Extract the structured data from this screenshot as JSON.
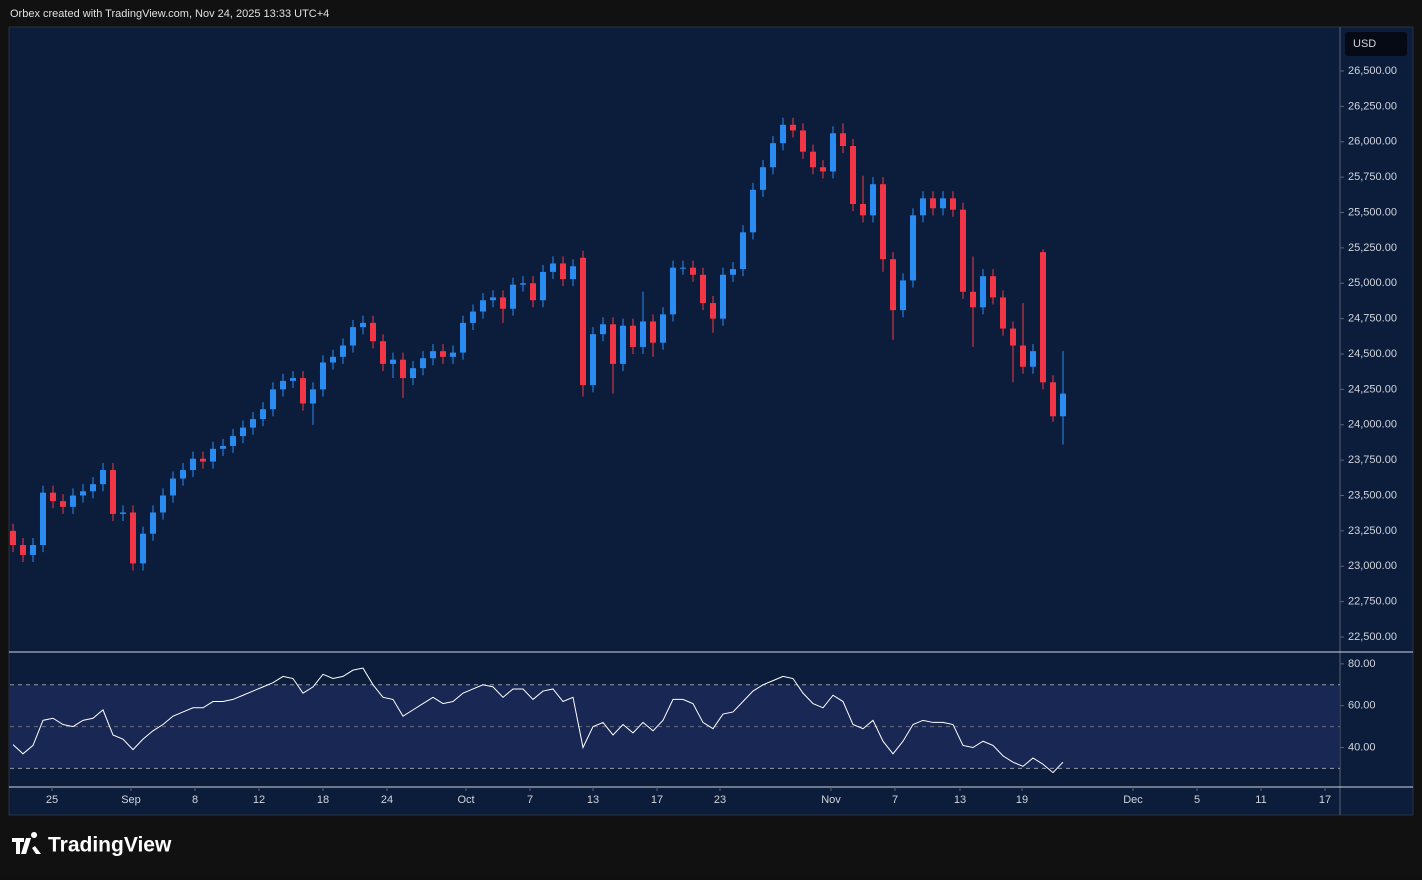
{
  "header": {
    "caption": "Orbex created with TradingView.com, Nov 24, 2025 13:33 UTC+4"
  },
  "logo": "TradingView",
  "chart_data": [
    {
      "type": "candlestick",
      "currency": "USD",
      "up_color": "#2a8cf0",
      "down_color": "#f23645",
      "open": [
        23250,
        23150,
        23080,
        23150,
        23520,
        23460,
        23420,
        23500,
        23530,
        23580,
        23680,
        23370,
        23380,
        23020,
        23230,
        23380,
        23500,
        23620,
        23680,
        23760,
        23740,
        23830,
        23850,
        23920,
        23980,
        24040,
        24110,
        24250,
        24310,
        24330,
        24150,
        24250,
        24440,
        24480,
        24560,
        24690,
        24720,
        24590,
        24430,
        24460,
        24330,
        24400,
        24470,
        24520,
        24480,
        24510,
        24720,
        24800,
        24880,
        24900,
        24820,
        24990,
        25000,
        24880,
        25080,
        25140,
        25030,
        25180,
        24280,
        24640,
        24710,
        24430,
        24700,
        24550,
        24730,
        24580,
        24780,
        25110,
        25110,
        25060,
        24860,
        24750,
        25060,
        25100,
        25360,
        25660,
        25820,
        25990,
        26120,
        26080,
        25930,
        25820,
        25790,
        26060,
        25970,
        25560,
        25480,
        25700,
        25170,
        24810,
        25020,
        25480,
        25600,
        25530,
        25600,
        25520,
        24940,
        24830,
        25050,
        24900,
        24680,
        24560,
        24410,
        25220,
        24300,
        24060
      ],
      "high": [
        23300,
        23200,
        23200,
        23570,
        23570,
        23510,
        23550,
        23580,
        23630,
        23730,
        23730,
        23430,
        23430,
        23280,
        23430,
        23550,
        23670,
        23730,
        23810,
        23810,
        23880,
        23900,
        23970,
        24030,
        24090,
        24160,
        24300,
        24360,
        24380,
        24380,
        24300,
        24490,
        24530,
        24610,
        24740,
        24770,
        24770,
        24640,
        24510,
        24510,
        24450,
        24520,
        24570,
        24570,
        24560,
        24770,
        24850,
        24930,
        24950,
        24950,
        25040,
        25050,
        25050,
        25130,
        25190,
        25190,
        25170,
        25230,
        24690,
        24760,
        24760,
        24750,
        24750,
        24940,
        24780,
        24830,
        25160,
        25160,
        25160,
        25110,
        24910,
        25110,
        25150,
        25410,
        25710,
        25870,
        26040,
        26170,
        26170,
        26130,
        25980,
        25870,
        26110,
        26130,
        26020,
        25760,
        25750,
        25750,
        25220,
        25070,
        25530,
        25650,
        25650,
        25650,
        25650,
        25570,
        25190,
        25100,
        25100,
        24950,
        24730,
        24860,
        24570,
        25240,
        24350,
        24520
      ],
      "low": [
        23100,
        23030,
        23030,
        23100,
        23410,
        23370,
        23370,
        23450,
        23480,
        23530,
        23320,
        23320,
        22970,
        22970,
        23180,
        23330,
        23450,
        23570,
        23630,
        23690,
        23690,
        23780,
        23800,
        23870,
        23930,
        23990,
        24060,
        24200,
        24260,
        24100,
        24000,
        24200,
        24390,
        24430,
        24510,
        24640,
        24540,
        24380,
        24330,
        24190,
        24280,
        24350,
        24420,
        24430,
        24430,
        24460,
        24670,
        24750,
        24830,
        24720,
        24770,
        24940,
        24830,
        24830,
        25030,
        24980,
        24980,
        24200,
        24230,
        24590,
        24220,
        24380,
        24500,
        24500,
        24480,
        24530,
        24730,
        25060,
        25010,
        24810,
        24650,
        24700,
        25010,
        25050,
        25310,
        25610,
        25770,
        25940,
        26030,
        25880,
        25770,
        25740,
        25740,
        25920,
        25510,
        25430,
        25430,
        25080,
        24600,
        24760,
        24970,
        25430,
        25480,
        25480,
        25470,
        24890,
        24550,
        24780,
        24850,
        24630,
        24300,
        24360,
        24360,
        24250,
        24020,
        23860
      ],
      "close": [
        23150,
        23080,
        23150,
        23520,
        23460,
        23420,
        23500,
        23530,
        23580,
        23680,
        23370,
        23380,
        23020,
        23230,
        23380,
        23500,
        23620,
        23680,
        23760,
        23740,
        23830,
        23850,
        23920,
        23980,
        24040,
        24110,
        24250,
        24310,
        24330,
        24150,
        24250,
        24440,
        24480,
        24560,
        24690,
        24720,
        24590,
        24430,
        24460,
        24330,
        24400,
        24470,
        24520,
        24480,
        24510,
        24720,
        24800,
        24880,
        24900,
        24820,
        24990,
        25000,
        24880,
        25080,
        25140,
        25030,
        25120,
        24280,
        24640,
        24710,
        24430,
        24700,
        24550,
        24730,
        24580,
        24780,
        25110,
        25110,
        25060,
        24860,
        24750,
        25060,
        25100,
        25360,
        25660,
        25820,
        25990,
        26120,
        26080,
        25930,
        25820,
        25790,
        26060,
        25970,
        25560,
        25480,
        25700,
        25170,
        24810,
        25020,
        25480,
        25600,
        25530,
        25600,
        25520,
        24940,
        24830,
        25050,
        24900,
        24680,
        24560,
        24410,
        24520,
        24300,
        24060,
        24220
      ],
      "ylim": [
        22401,
        26804
      ],
      "yticks": [
        {
          "value": 22500,
          "label": "22,500.00"
        },
        {
          "value": 22750,
          "label": "22,750.00"
        },
        {
          "value": 23000,
          "label": "23,000.00"
        },
        {
          "value": 23250,
          "label": "23,250.00"
        },
        {
          "value": 23500,
          "label": "23,500.00"
        },
        {
          "value": 23750,
          "label": "23,750.00"
        },
        {
          "value": 24000,
          "label": "24,000.00"
        },
        {
          "value": 24250,
          "label": "24,250.00"
        },
        {
          "value": 24500,
          "label": "24,500.00"
        },
        {
          "value": 24750,
          "label": "24,750.00"
        },
        {
          "value": 25000,
          "label": "25,000.00"
        },
        {
          "value": 25250,
          "label": "25,250.00"
        },
        {
          "value": 25500,
          "label": "25,500.00"
        },
        {
          "value": 25750,
          "label": "25,750.00"
        },
        {
          "value": 26000,
          "label": "26,000.00"
        },
        {
          "value": 26250,
          "label": "26,250.00"
        },
        {
          "value": 26500,
          "label": "26,500.00"
        }
      ],
      "xlim": [
        -0.3,
        132.7
      ],
      "xticks": [
        {
          "value": 3.9,
          "label": "25"
        },
        {
          "value": 11.8,
          "label": "Sep"
        },
        {
          "value": 18.2,
          "label": "8"
        },
        {
          "value": 24.6,
          "label": "12"
        },
        {
          "value": 31,
          "label": "18"
        },
        {
          "value": 37.4,
          "label": "24"
        },
        {
          "value": 45.3,
          "label": "Oct"
        },
        {
          "value": 51.7,
          "label": "7"
        },
        {
          "value": 58,
          "label": "13"
        },
        {
          "value": 64.4,
          "label": "17"
        },
        {
          "value": 70.7,
          "label": "23"
        },
        {
          "value": 81.8,
          "label": "Nov"
        },
        {
          "value": 88.2,
          "label": "7"
        },
        {
          "value": 94.7,
          "label": "13"
        },
        {
          "value": 100.9,
          "label": "19"
        },
        {
          "value": 112,
          "label": "Dec"
        },
        {
          "value": 118.4,
          "label": "5"
        },
        {
          "value": 124.8,
          "label": "11"
        },
        {
          "value": 131.2,
          "label": "17"
        }
      ]
    },
    {
      "type": "line",
      "color": "#ffffff",
      "values": [
        41.4,
        37,
        41,
        53,
        54,
        51,
        50,
        53,
        54,
        58,
        46,
        44,
        39,
        44,
        48,
        51,
        55,
        57,
        59,
        59,
        62,
        62,
        63,
        65,
        67,
        69,
        71,
        74,
        73,
        66,
        69,
        75,
        73,
        74,
        77,
        78,
        70,
        64,
        63,
        55,
        58,
        61,
        64,
        61,
        62,
        66,
        68,
        70,
        69,
        64,
        68,
        68,
        63,
        67,
        68,
        62,
        64,
        40,
        50,
        52,
        46,
        51,
        47,
        52,
        48,
        53,
        63,
        63,
        61,
        52,
        49,
        56,
        57,
        62,
        67,
        70,
        72,
        74,
        73,
        66,
        61,
        59,
        65,
        62,
        51,
        49,
        53,
        43,
        37,
        43,
        51,
        53,
        52,
        52,
        51,
        41,
        40,
        43,
        41,
        36,
        33,
        31,
        35,
        32,
        28,
        33
      ],
      "ylim": [
        21.6,
        85.2
      ],
      "yticks": [
        {
          "value": 40,
          "label": "40.00"
        },
        {
          "value": 60,
          "label": "60.00"
        },
        {
          "value": 80,
          "label": "80.00"
        }
      ],
      "band": [
        30,
        70
      ],
      "midline": 50
    }
  ]
}
